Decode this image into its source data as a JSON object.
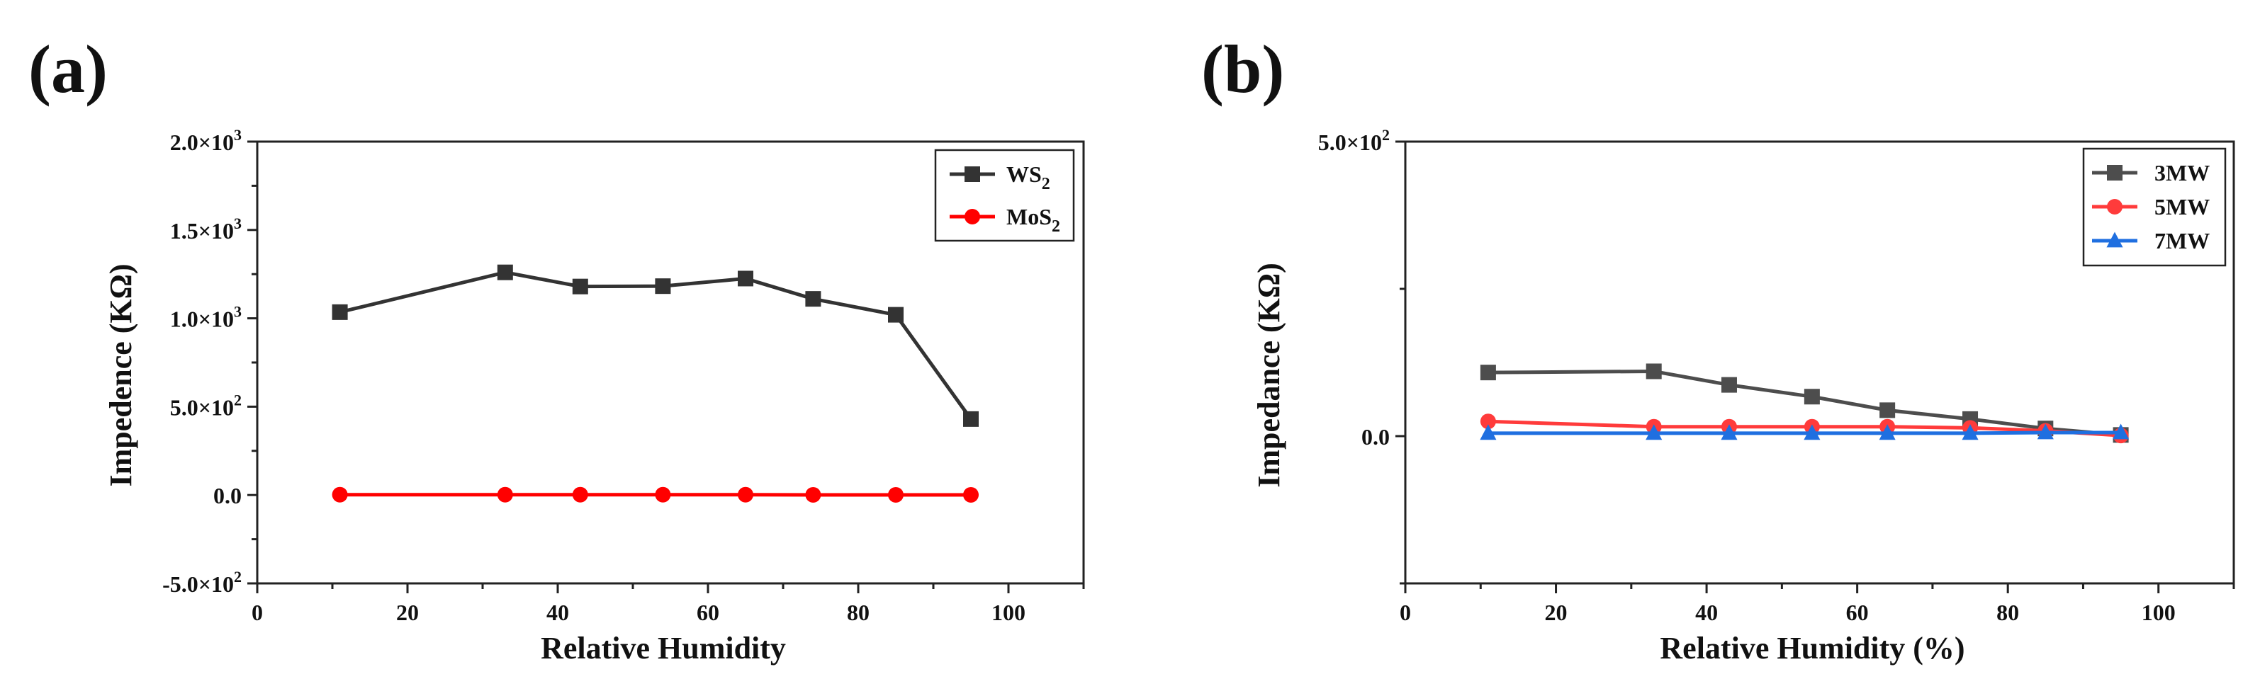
{
  "chart_data": [
    {
      "type": "line",
      "panel_label": "(a)",
      "title": "",
      "xlabel": "Relative Humidity",
      "ylabel": "Impedence (KΩ)",
      "xlim": [
        0,
        110
      ],
      "ylim": [
        -500,
        2000
      ],
      "xticks": [
        0,
        20,
        40,
        60,
        80,
        100
      ],
      "xtick_labels": [
        "0",
        "20",
        "40",
        "60",
        "80",
        "100"
      ],
      "yticks": [
        -500,
        0,
        500,
        1000,
        1500,
        2000
      ],
      "ytick_labels": [
        {
          "mantissa": "-5.0",
          "exp": "2"
        },
        {
          "mantissa": "0.0",
          "exp": ""
        },
        {
          "mantissa": "5.0",
          "exp": "2"
        },
        {
          "mantissa": "1.0",
          "exp": "3"
        },
        {
          "mantissa": "1.5",
          "exp": "3"
        },
        {
          "mantissa": "2.0",
          "exp": "3"
        }
      ],
      "legend_position": "top-right",
      "series": [
        {
          "name": "WS",
          "name_sub": "2",
          "color": "#333333",
          "marker": "square",
          "x": [
            11,
            33,
            43,
            54,
            65,
            74,
            85,
            95
          ],
          "y": [
            1035,
            1260,
            1180,
            1182,
            1225,
            1110,
            1020,
            430
          ]
        },
        {
          "name": "MoS",
          "name_sub": "2",
          "color": "#ff0000",
          "marker": "circle",
          "x": [
            11,
            33,
            43,
            54,
            65,
            74,
            85,
            95
          ],
          "y": [
            2,
            2,
            2,
            2,
            2,
            1,
            1,
            1
          ]
        }
      ]
    },
    {
      "type": "line",
      "panel_label": "(b)",
      "title": "",
      "xlabel": "Relative Humidity (%)",
      "ylabel": "Impedance (KΩ)",
      "xlim": [
        0,
        110
      ],
      "ylim": [
        -250,
        500
      ],
      "xticks": [
        0,
        20,
        40,
        60,
        80,
        100
      ],
      "xtick_labels": [
        "0",
        "20",
        "40",
        "60",
        "80",
        "100"
      ],
      "yticks": [
        0,
        500
      ],
      "ytick_labels": [
        {
          "mantissa": "0.0",
          "exp": ""
        },
        {
          "mantissa": "5.0",
          "exp": "2"
        }
      ],
      "legend_position": "top-right",
      "series": [
        {
          "name": "3MW",
          "name_sub": "",
          "color": "#4d4d4d",
          "marker": "square",
          "x": [
            11,
            33,
            43,
            54,
            64,
            75,
            85,
            95
          ],
          "y": [
            108,
            110,
            87,
            67,
            44,
            29,
            13,
            2
          ]
        },
        {
          "name": "5MW",
          "name_sub": "",
          "color": "#ff3b3b",
          "marker": "circle",
          "x": [
            11,
            33,
            43,
            54,
            64,
            75,
            85,
            95
          ],
          "y": [
            25,
            16,
            16,
            16,
            16,
            14,
            9,
            1
          ]
        },
        {
          "name": "7MW",
          "name_sub": "",
          "color": "#1f6fe0",
          "marker": "triangle",
          "x": [
            11,
            33,
            43,
            54,
            64,
            75,
            85,
            95
          ],
          "y": [
            5,
            5,
            5,
            5,
            5,
            5,
            6,
            6
          ]
        }
      ]
    }
  ]
}
